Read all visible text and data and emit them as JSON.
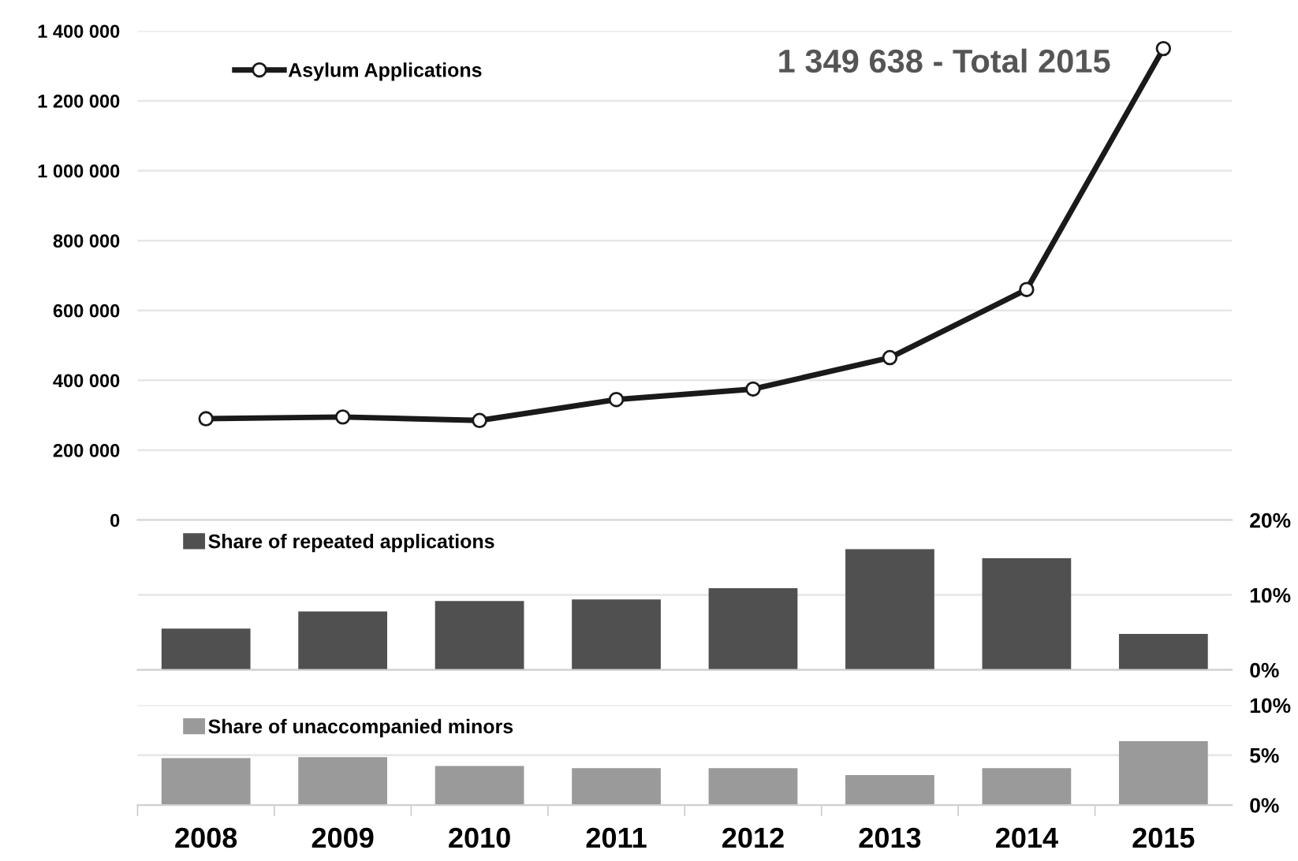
{
  "chart_data": [
    {
      "type": "line",
      "categories": [
        "2008",
        "2009",
        "2010",
        "2011",
        "2012",
        "2013",
        "2014",
        "2015"
      ],
      "series": [
        {
          "name": "Asylum Applications",
          "color": "#1a1a1a",
          "values": [
            290000,
            295000,
            285000,
            345000,
            375000,
            465000,
            660000,
            1349638
          ]
        }
      ],
      "ylim": [
        0,
        1400000
      ],
      "yticks": [
        {
          "value": 0,
          "label": "0"
        },
        {
          "value": 200000,
          "label": "200 000"
        },
        {
          "value": 400000,
          "label": "400 000"
        },
        {
          "value": 600000,
          "label": "600 000"
        },
        {
          "value": 800000,
          "label": "800 000"
        },
        {
          "value": 1000000,
          "label": "1 000 000"
        },
        {
          "value": 1200000,
          "label": "1 200 000"
        },
        {
          "value": 1400000,
          "label": "1 400 000"
        }
      ],
      "annotations": [
        {
          "text": "1 349 638 - Total 2015",
          "x": "2015",
          "y": 1349638
        }
      ],
      "marker": "circle",
      "line_style": "solid",
      "grid": "y",
      "legend": "top left",
      "tick_labels": "y"
    },
    {
      "type": "bar",
      "categories": [
        "2008",
        "2009",
        "2010",
        "2011",
        "2012",
        "2013",
        "2014",
        "2015"
      ],
      "series": [
        {
          "name": "Share of repeated applications",
          "color": "#505050",
          "axis": "y2",
          "values": [
            5.5,
            7.8,
            9.2,
            9.4,
            10.9,
            16.1,
            14.9,
            4.8
          ]
        }
      ],
      "y2lim": [
        0,
        20
      ],
      "y2ticks": [
        {
          "value": 0,
          "label": "0%"
        },
        {
          "value": 10,
          "label": "10%"
        },
        {
          "value": 20,
          "label": "20%"
        }
      ],
      "grid": "y",
      "legend": "top left",
      "tick_labels": "y"
    },
    {
      "type": "bar",
      "categories": [
        "2008",
        "2009",
        "2010",
        "2011",
        "2012",
        "2013",
        "2014",
        "2015"
      ],
      "series": [
        {
          "name": "Share of unaccompanied minors",
          "color": "#9a9a9a",
          "axis": "y2",
          "values": [
            4.7,
            4.8,
            3.9,
            3.7,
            3.7,
            3.0,
            3.7,
            6.4
          ]
        }
      ],
      "y2lim": [
        0,
        10
      ],
      "y2ticks": [
        {
          "value": 0,
          "label": "0%"
        },
        {
          "value": 5,
          "label": "5%"
        },
        {
          "value": 10,
          "label": "10%"
        }
      ],
      "grid": "y",
      "legend": "top left"
    }
  ]
}
